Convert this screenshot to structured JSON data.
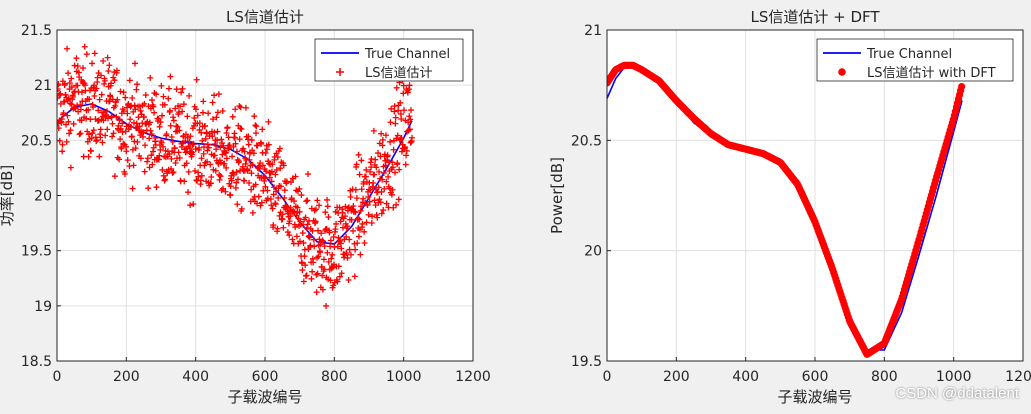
{
  "watermark": "CSDN @ddatalent",
  "colors": {
    "true_line": "#0000ff",
    "estimate": "#ff0000",
    "figure_bg": "#f0f0f0",
    "axes_bg": "#ffffff",
    "grid": "#e0e0e0",
    "text": "#262626"
  },
  "chart_data": [
    {
      "type": "scatter",
      "title": "LS信道估计",
      "xlabel": "子载波编号",
      "ylabel": "功率[dB]",
      "xlim": [
        0,
        1200
      ],
      "ylim": [
        18.5,
        21.5
      ],
      "xticks": [
        "0",
        "200",
        "400",
        "600",
        "800",
        "1000",
        "1200"
      ],
      "yticks": [
        "18.5",
        "19",
        "19.5",
        "20",
        "20.5",
        "21",
        "21.5"
      ],
      "grid": true,
      "legend_position": "top-right",
      "legend": [
        "True Channel",
        "LS信道估计"
      ],
      "series": [
        {
          "name": "True Channel",
          "style": "line",
          "x": [
            0,
            50,
            100,
            150,
            200,
            250,
            300,
            350,
            400,
            450,
            500,
            550,
            600,
            650,
            700,
            750,
            800,
            850,
            900,
            950,
            1000,
            1024
          ],
          "y": [
            20.67,
            20.8,
            20.83,
            20.76,
            20.65,
            20.57,
            20.52,
            20.49,
            20.47,
            20.46,
            20.42,
            20.33,
            20.18,
            19.98,
            19.76,
            19.58,
            19.56,
            19.72,
            19.98,
            20.24,
            20.52,
            20.68
          ]
        },
        {
          "name": "LS信道估计",
          "style": "markers",
          "marker": "+",
          "spread": 0.45,
          "x": [
            0,
            50,
            100,
            150,
            200,
            250,
            300,
            350,
            400,
            450,
            500,
            550,
            600,
            650,
            700,
            750,
            800,
            850,
            900,
            950,
            1000,
            1024
          ],
          "y": [
            20.72,
            20.88,
            20.8,
            20.78,
            20.68,
            20.6,
            20.55,
            20.5,
            20.47,
            20.43,
            20.35,
            20.3,
            20.15,
            19.95,
            19.7,
            19.55,
            19.5,
            19.75,
            20.0,
            20.3,
            20.62,
            20.72
          ]
        }
      ]
    },
    {
      "type": "scatter",
      "title": "LS信道估计 + DFT",
      "xlabel": "子载波编号",
      "ylabel": "Power[dB]",
      "xlim": [
        0,
        1200
      ],
      "ylim": [
        19.5,
        21
      ],
      "xticks": [
        "0",
        "200",
        "400",
        "600",
        "800",
        "1000",
        "1200"
      ],
      "yticks": [
        "19.5",
        "20",
        "20.5",
        "21"
      ],
      "grid": true,
      "legend_position": "top-right",
      "legend": [
        "True Channel",
        "LS信道估计 with DFT"
      ],
      "series": [
        {
          "name": "True Channel",
          "style": "line",
          "x": [
            0,
            25,
            50,
            75,
            100,
            150,
            200,
            250,
            300,
            350,
            400,
            450,
            500,
            550,
            600,
            650,
            700,
            750,
            800,
            850,
            900,
            950,
            1000,
            1024
          ],
          "y": [
            20.69,
            20.78,
            20.83,
            20.84,
            20.83,
            20.77,
            20.68,
            20.58,
            20.52,
            20.48,
            20.46,
            20.44,
            20.41,
            20.32,
            20.16,
            19.95,
            19.7,
            19.55,
            19.55,
            19.72,
            19.98,
            20.25,
            20.54,
            20.68
          ]
        },
        {
          "name": "LS信道估计 with DFT",
          "style": "markers",
          "marker": "dot",
          "x": [
            0,
            25,
            50,
            75,
            100,
            150,
            200,
            250,
            300,
            350,
            400,
            450,
            500,
            550,
            600,
            650,
            700,
            750,
            800,
            850,
            900,
            950,
            1000,
            1024
          ],
          "y": [
            20.76,
            20.82,
            20.84,
            20.84,
            20.82,
            20.77,
            20.68,
            20.6,
            20.53,
            20.48,
            20.46,
            20.44,
            20.4,
            20.3,
            20.13,
            19.92,
            19.68,
            19.53,
            19.58,
            19.78,
            20.05,
            20.33,
            20.6,
            20.75
          ]
        }
      ]
    }
  ]
}
